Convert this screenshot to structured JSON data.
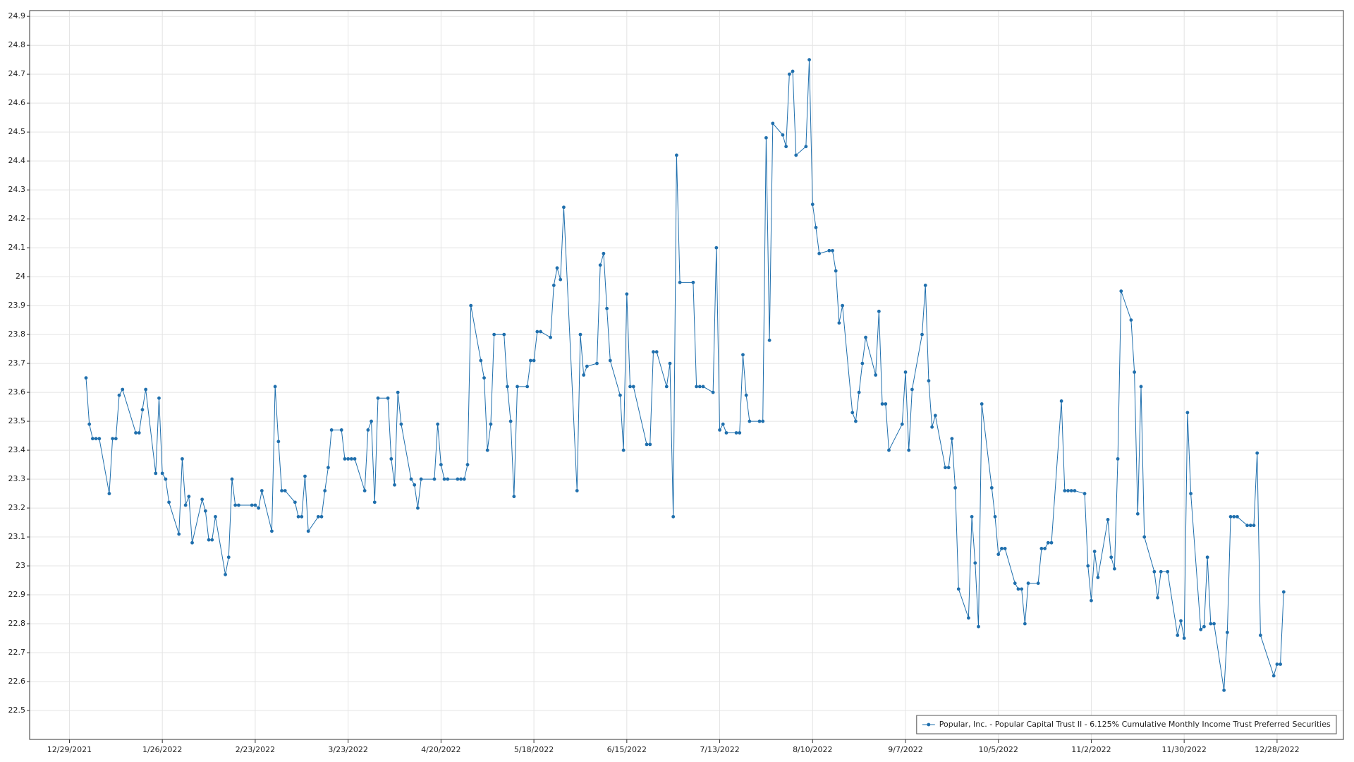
{
  "chart_data": {
    "type": "line",
    "x": [
      "2022-01-03",
      "2022-01-04",
      "2022-01-05",
      "2022-01-06",
      "2022-01-07",
      "2022-01-10",
      "2022-01-11",
      "2022-01-12",
      "2022-01-13",
      "2022-01-14",
      "2022-01-18",
      "2022-01-19",
      "2022-01-20",
      "2022-01-21",
      "2022-01-24",
      "2022-01-25",
      "2022-01-26",
      "2022-01-27",
      "2022-01-28",
      "2022-01-31",
      "2022-02-01",
      "2022-02-02",
      "2022-02-03",
      "2022-02-04",
      "2022-02-07",
      "2022-02-08",
      "2022-02-09",
      "2022-02-10",
      "2022-02-11",
      "2022-02-14",
      "2022-02-15",
      "2022-02-16",
      "2022-02-17",
      "2022-02-18",
      "2022-02-22",
      "2022-02-23",
      "2022-02-24",
      "2022-02-25",
      "2022-02-28",
      "2022-03-01",
      "2022-03-02",
      "2022-03-03",
      "2022-03-04",
      "2022-03-07",
      "2022-03-08",
      "2022-03-09",
      "2022-03-10",
      "2022-03-11",
      "2022-03-14",
      "2022-03-15",
      "2022-03-16",
      "2022-03-17",
      "2022-03-18",
      "2022-03-21",
      "2022-03-22",
      "2022-03-23",
      "2022-03-24",
      "2022-03-25",
      "2022-03-28",
      "2022-03-29",
      "2022-03-30",
      "2022-03-31",
      "2022-04-01",
      "2022-04-04",
      "2022-04-05",
      "2022-04-06",
      "2022-04-07",
      "2022-04-08",
      "2022-04-11",
      "2022-04-12",
      "2022-04-13",
      "2022-04-14",
      "2022-04-18",
      "2022-04-19",
      "2022-04-20",
      "2022-04-21",
      "2022-04-22",
      "2022-04-25",
      "2022-04-26",
      "2022-04-27",
      "2022-04-28",
      "2022-04-29",
      "2022-05-02",
      "2022-05-03",
      "2022-05-04",
      "2022-05-05",
      "2022-05-06",
      "2022-05-09",
      "2022-05-10",
      "2022-05-11",
      "2022-05-12",
      "2022-05-13",
      "2022-05-16",
      "2022-05-17",
      "2022-05-18",
      "2022-05-19",
      "2022-05-20",
      "2022-05-23",
      "2022-05-24",
      "2022-05-25",
      "2022-05-26",
      "2022-05-27",
      "2022-05-31",
      "2022-06-01",
      "2022-06-02",
      "2022-06-03",
      "2022-06-06",
      "2022-06-07",
      "2022-06-08",
      "2022-06-09",
      "2022-06-10",
      "2022-06-13",
      "2022-06-14",
      "2022-06-15",
      "2022-06-16",
      "2022-06-17",
      "2022-06-21",
      "2022-06-22",
      "2022-06-23",
      "2022-06-24",
      "2022-06-27",
      "2022-06-28",
      "2022-06-29",
      "2022-06-30",
      "2022-07-01",
      "2022-07-05",
      "2022-07-06",
      "2022-07-07",
      "2022-07-08",
      "2022-07-11",
      "2022-07-12",
      "2022-07-13",
      "2022-07-14",
      "2022-07-15",
      "2022-07-18",
      "2022-07-19",
      "2022-07-20",
      "2022-07-21",
      "2022-07-22",
      "2022-07-25",
      "2022-07-26",
      "2022-07-27",
      "2022-07-28",
      "2022-07-29",
      "2022-08-01",
      "2022-08-02",
      "2022-08-03",
      "2022-08-04",
      "2022-08-05",
      "2022-08-08",
      "2022-08-09",
      "2022-08-10",
      "2022-08-11",
      "2022-08-12",
      "2022-08-15",
      "2022-08-16",
      "2022-08-17",
      "2022-08-18",
      "2022-08-19",
      "2022-08-22",
      "2022-08-23",
      "2022-08-24",
      "2022-08-25",
      "2022-08-26",
      "2022-08-29",
      "2022-08-30",
      "2022-08-31",
      "2022-09-01",
      "2022-09-02",
      "2022-09-06",
      "2022-09-07",
      "2022-09-08",
      "2022-09-09",
      "2022-09-12",
      "2022-09-13",
      "2022-09-14",
      "2022-09-15",
      "2022-09-16",
      "2022-09-19",
      "2022-09-20",
      "2022-09-21",
      "2022-09-22",
      "2022-09-23",
      "2022-09-26",
      "2022-09-27",
      "2022-09-28",
      "2022-09-29",
      "2022-09-30",
      "2022-10-03",
      "2022-10-04",
      "2022-10-05",
      "2022-10-06",
      "2022-10-07",
      "2022-10-10",
      "2022-10-11",
      "2022-10-12",
      "2022-10-13",
      "2022-10-14",
      "2022-10-17",
      "2022-10-18",
      "2022-10-19",
      "2022-10-20",
      "2022-10-21",
      "2022-10-24",
      "2022-10-25",
      "2022-10-26",
      "2022-10-27",
      "2022-10-28",
      "2022-10-31",
      "2022-11-01",
      "2022-11-02",
      "2022-11-03",
      "2022-11-04",
      "2022-11-07",
      "2022-11-08",
      "2022-11-09",
      "2022-11-10",
      "2022-11-11",
      "2022-11-14",
      "2022-11-15",
      "2022-11-16",
      "2022-11-17",
      "2022-11-18",
      "2022-11-21",
      "2022-11-22",
      "2022-11-23",
      "2022-11-25",
      "2022-11-28",
      "2022-11-29",
      "2022-11-30",
      "2022-12-01",
      "2022-12-02",
      "2022-12-05",
      "2022-12-06",
      "2022-12-07",
      "2022-12-08",
      "2022-12-09",
      "2022-12-12",
      "2022-12-13",
      "2022-12-14",
      "2022-12-15",
      "2022-12-16",
      "2022-12-19",
      "2022-12-20",
      "2022-12-21",
      "2022-12-22",
      "2022-12-23",
      "2022-12-27",
      "2022-12-28",
      "2022-12-29",
      "2022-12-30"
    ],
    "series": [
      {
        "name": "Popular, Inc. - Popular Capital Trust II - 6.125% Cumulative Monthly Income Trust Preferred Securities",
        "color": "#1f6fad",
        "values": [
          23.65,
          23.49,
          23.44,
          23.44,
          23.44,
          23.25,
          23.44,
          23.44,
          23.59,
          23.61,
          23.46,
          23.46,
          23.54,
          23.61,
          23.32,
          23.58,
          23.32,
          23.3,
          23.22,
          23.11,
          23.37,
          23.21,
          23.24,
          23.08,
          23.23,
          23.19,
          23.09,
          23.09,
          23.17,
          22.97,
          23.03,
          23.3,
          23.21,
          23.21,
          23.21,
          23.21,
          23.2,
          23.26,
          23.12,
          23.62,
          23.43,
          23.26,
          23.26,
          23.22,
          23.17,
          23.17,
          23.31,
          23.12,
          23.17,
          23.17,
          23.26,
          23.34,
          23.47,
          23.47,
          23.37,
          23.37,
          23.37,
          23.37,
          23.26,
          23.47,
          23.5,
          23.22,
          23.58,
          23.58,
          23.37,
          23.28,
          23.6,
          23.49,
          23.3,
          23.28,
          23.2,
          23.3,
          23.3,
          23.49,
          23.35,
          23.3,
          23.3,
          23.3,
          23.3,
          23.3,
          23.35,
          23.9,
          23.71,
          23.65,
          23.4,
          23.49,
          23.8,
          23.8,
          23.62,
          23.5,
          23.24,
          23.62,
          23.62,
          23.71,
          23.71,
          23.81,
          23.81,
          23.79,
          23.97,
          24.03,
          23.99,
          24.24,
          23.26,
          23.8,
          23.66,
          23.69,
          23.7,
          24.04,
          24.08,
          23.89,
          23.71,
          23.59,
          23.4,
          23.94,
          23.62,
          23.62,
          23.42,
          23.42,
          23.74,
          23.74,
          23.62,
          23.7,
          23.17,
          24.42,
          23.98,
          23.98,
          23.62,
          23.62,
          23.62,
          23.6,
          24.1,
          23.47,
          23.49,
          23.46,
          23.46,
          23.46,
          23.73,
          23.59,
          23.5,
          23.5,
          23.5,
          24.48,
          23.78,
          24.53,
          24.49,
          24.45,
          24.7,
          24.71,
          24.42,
          24.45,
          24.75,
          24.25,
          24.17,
          24.08,
          24.09,
          24.09,
          24.02,
          23.84,
          23.9,
          23.53,
          23.5,
          23.6,
          23.7,
          23.79,
          23.66,
          23.88,
          23.56,
          23.56,
          23.4,
          23.49,
          23.67,
          23.4,
          23.61,
          23.8,
          23.97,
          23.64,
          23.48,
          23.52,
          23.34,
          23.34,
          23.44,
          23.27,
          22.92,
          22.82,
          23.17,
          23.01,
          22.79,
          23.56,
          23.27,
          23.17,
          23.04,
          23.06,
          23.06,
          22.94,
          22.92,
          22.92,
          22.8,
          22.94,
          22.94,
          23.06,
          23.06,
          23.08,
          23.08,
          23.57,
          23.26,
          23.26,
          23.26,
          23.26,
          23.25,
          23.0,
          22.88,
          23.05,
          22.96,
          23.16,
          23.03,
          22.99,
          23.37,
          23.95,
          23.85,
          23.67,
          23.18,
          23.62,
          23.1,
          22.98,
          22.89,
          22.98,
          22.98,
          22.76,
          22.81,
          22.75,
          23.53,
          23.25,
          22.78,
          22.79,
          23.03,
          22.8,
          22.8,
          22.57,
          22.77,
          23.17,
          23.17,
          23.17,
          23.14,
          23.14,
          23.14,
          23.39,
          22.76,
          22.62,
          22.66,
          22.66,
          22.91
        ]
      }
    ],
    "xlim": [
      "2021-12-17",
      "2023-01-17"
    ],
    "xticks": [
      {
        "value": "2021-12-29",
        "label": "12/29/2021"
      },
      {
        "value": "2022-01-26",
        "label": "1/26/2022"
      },
      {
        "value": "2022-02-23",
        "label": "2/23/2022"
      },
      {
        "value": "2022-03-23",
        "label": "3/23/2022"
      },
      {
        "value": "2022-04-20",
        "label": "4/20/2022"
      },
      {
        "value": "2022-05-18",
        "label": "5/18/2022"
      },
      {
        "value": "2022-06-15",
        "label": "6/15/2022"
      },
      {
        "value": "2022-07-13",
        "label": "7/13/2022"
      },
      {
        "value": "2022-08-10",
        "label": "8/10/2022"
      },
      {
        "value": "2022-09-07",
        "label": "9/7/2022"
      },
      {
        "value": "2022-10-05",
        "label": "10/5/2022"
      },
      {
        "value": "2022-11-02",
        "label": "11/2/2022"
      },
      {
        "value": "2022-11-30",
        "label": "11/30/2022"
      },
      {
        "value": "2022-12-28",
        "label": "12/28/2022"
      }
    ],
    "ylim": [
      22.4,
      24.92
    ],
    "yticks": [
      22.5,
      22.6,
      22.7,
      22.8,
      22.9,
      23,
      23.1,
      23.2,
      23.3,
      23.4,
      23.5,
      23.6,
      23.7,
      23.8,
      23.9,
      24,
      24.1,
      24.2,
      24.3,
      24.4,
      24.5,
      24.6,
      24.7,
      24.8,
      24.9
    ],
    "grid": true,
    "legend": "lower right"
  }
}
